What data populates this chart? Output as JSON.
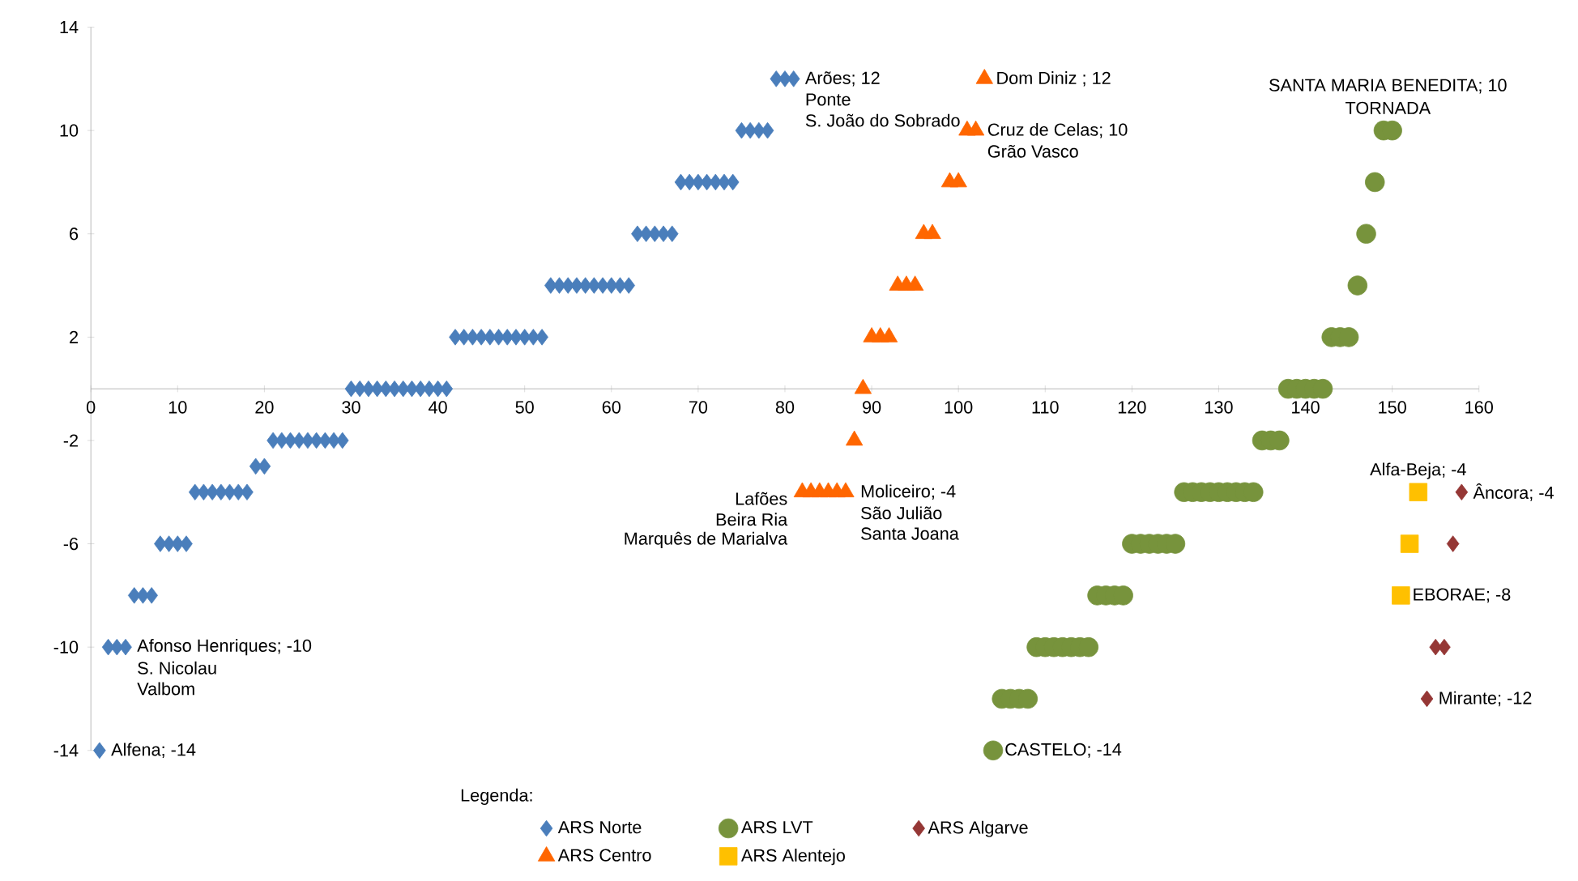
{
  "chart_data": {
    "type": "scatter",
    "legend_title": "Legenda:",
    "legend": "bottom",
    "xlim": [
      0,
      160
    ],
    "xticks": [
      0,
      10,
      20,
      30,
      40,
      50,
      60,
      70,
      80,
      90,
      100,
      110,
      120,
      130,
      140,
      150,
      160
    ],
    "ylim": [
      -14,
      14
    ],
    "yticks": [
      -14,
      -10,
      -6,
      -2,
      2,
      6,
      10,
      14
    ],
    "series": [
      {
        "name": "ARS Norte",
        "color": "#4a7ebb",
        "marker": "diamond",
        "x": [
          1,
          2,
          3,
          4,
          5,
          6,
          7,
          8,
          9,
          10,
          11,
          12,
          13,
          14,
          15,
          16,
          17,
          18,
          19,
          20,
          21,
          22,
          23,
          24,
          25,
          26,
          27,
          28,
          29,
          30,
          31,
          32,
          33,
          34,
          35,
          36,
          37,
          38,
          39,
          40,
          41,
          42,
          43,
          44,
          45,
          46,
          47,
          48,
          49,
          50,
          51,
          52,
          53,
          54,
          55,
          56,
          57,
          58,
          59,
          60,
          61,
          62,
          63,
          64,
          65,
          66,
          67,
          68,
          69,
          70,
          71,
          72,
          73,
          74,
          75,
          76,
          77,
          78,
          79,
          80,
          81
        ],
        "values": [
          -14,
          -10,
          -10,
          -10,
          -8,
          -8,
          -8,
          -6,
          -6,
          -6,
          -6,
          -4,
          -4,
          -4,
          -4,
          -4,
          -4,
          -4,
          -3,
          -3,
          -2,
          -2,
          -2,
          -2,
          -2,
          -2,
          -2,
          -2,
          -2,
          0,
          0,
          0,
          0,
          0,
          0,
          0,
          0,
          0,
          0,
          0,
          0,
          2,
          2,
          2,
          2,
          2,
          2,
          2,
          2,
          2,
          2,
          2,
          4,
          4,
          4,
          4,
          4,
          4,
          4,
          4,
          4,
          4,
          6,
          6,
          6,
          6,
          6,
          8,
          8,
          8,
          8,
          8,
          8,
          8,
          10,
          10,
          10,
          10,
          12,
          12,
          12
        ]
      },
      {
        "name": "ARS LVT",
        "color": "#77933c",
        "marker": "circle",
        "x": [
          104,
          105,
          106,
          107,
          108,
          109,
          110,
          111,
          112,
          113,
          114,
          115,
          116,
          117,
          118,
          119,
          120,
          121,
          122,
          123,
          124,
          125,
          126,
          127,
          128,
          129,
          130,
          131,
          132,
          133,
          134,
          135,
          136,
          137,
          138,
          139,
          140,
          141,
          142,
          143,
          144,
          145,
          146,
          147,
          148,
          149,
          150
        ],
        "values": [
          -14,
          -12,
          -12,
          -12,
          -12,
          -10,
          -10,
          -10,
          -10,
          -10,
          -10,
          -10,
          -8,
          -8,
          -8,
          -8,
          -6,
          -6,
          -6,
          -6,
          -6,
          -6,
          -4,
          -4,
          -4,
          -4,
          -4,
          -4,
          -4,
          -4,
          -4,
          -2,
          -2,
          -2,
          0,
          0,
          0,
          0,
          0,
          2,
          2,
          2,
          4,
          6,
          8,
          10,
          10
        ]
      },
      {
        "name": "ARS Algarve",
        "color": "#953735",
        "marker": "diamond",
        "x": [
          154,
          155,
          156,
          157,
          158
        ],
        "values": [
          -12,
          -10,
          -10,
          -6,
          -4
        ]
      },
      {
        "name": "ARS Centro",
        "color": "#ff6600",
        "marker": "triangle",
        "x": [
          82,
          83,
          84,
          85,
          86,
          87,
          88,
          89,
          90,
          91,
          92,
          93,
          94,
          95,
          96,
          97,
          99,
          100,
          101,
          102,
          103
        ],
        "values": [
          -4,
          -4,
          -4,
          -4,
          -4,
          -4,
          -2,
          0,
          2,
          2,
          2,
          4,
          4,
          4,
          6,
          6,
          8,
          8,
          10,
          10,
          12
        ]
      },
      {
        "name": "ARS Alentejo",
        "color": "#ffc000",
        "marker": "square",
        "x": [
          151,
          152,
          153
        ],
        "values": [
          -8,
          -6,
          -4
        ]
      }
    ],
    "annotations": [
      {
        "text": "Alfena; -14",
        "x": 1,
        "y": -14
      },
      {
        "text": "Afonso Henriques; -10",
        "x": 2,
        "y": -10
      },
      {
        "text": "S. Nicolau",
        "x": 3,
        "y": -10
      },
      {
        "text": "Valbom",
        "x": 4,
        "y": -10
      },
      {
        "text": "Arões; 12",
        "x": 79,
        "y": 12
      },
      {
        "text": "Ponte",
        "x": 80,
        "y": 12
      },
      {
        "text": "S. João do Sobrado",
        "x": 81,
        "y": 12
      },
      {
        "text": "Lafões",
        "x": 82,
        "y": -4
      },
      {
        "text": "Beira Ria",
        "x": 83,
        "y": -4
      },
      {
        "text": "Marquês de Marialva",
        "x": 84,
        "y": -4
      },
      {
        "text": "Moliceiro; -4",
        "x": 85,
        "y": -4
      },
      {
        "text": "São Julião",
        "x": 86,
        "y": -4
      },
      {
        "text": "Santa Joana",
        "x": 87,
        "y": -4
      },
      {
        "text": "Cruz de Celas; 10",
        "x": 101,
        "y": 10
      },
      {
        "text": "Grão Vasco",
        "x": 102,
        "y": 10
      },
      {
        "text": "Dom Diniz ; 12",
        "x": 103,
        "y": 12
      },
      {
        "text": "CASTELO; -14",
        "x": 104,
        "y": -14
      },
      {
        "text": "SANTA MARIA BENEDITA;  10",
        "x": 149,
        "y": 10
      },
      {
        "text": "TORNADA",
        "x": 150,
        "y": 10
      },
      {
        "text": "EBORAE; -8",
        "x": 151,
        "y": -8
      },
      {
        "text": "Alfa-Beja; -4",
        "x": 153,
        "y": -4
      },
      {
        "text": "Mirante; -12",
        "x": 154,
        "y": -12
      },
      {
        "text": "Âncora; -4",
        "x": 158,
        "y": -4
      }
    ]
  }
}
